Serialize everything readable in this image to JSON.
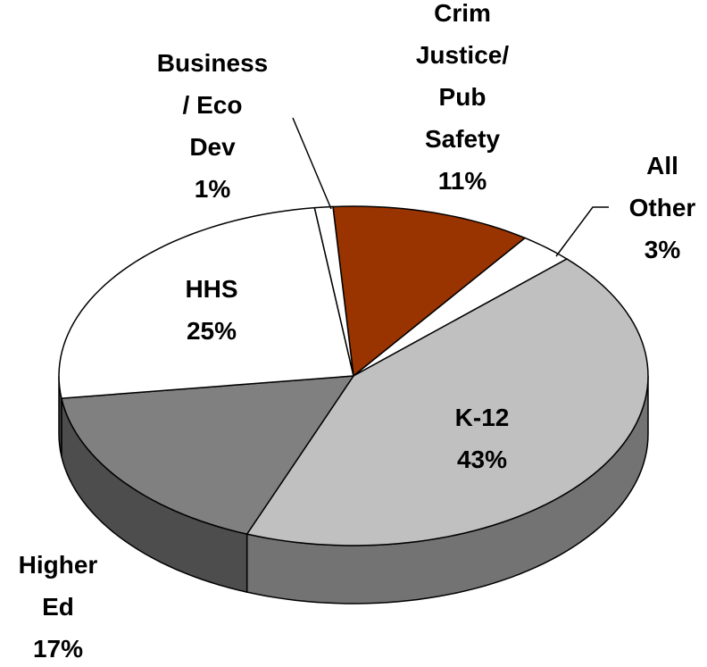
{
  "chart_data": {
    "type": "pie",
    "categories": [
      "Crim\nJustice/\nPub\nSafety",
      "All\nOther",
      "K-12",
      "Higher\nEd",
      "HHS",
      "Business\n/ Eco\nDev"
    ],
    "values": [
      11,
      3,
      43,
      17,
      25,
      1
    ],
    "value_labels": [
      "11%",
      "3%",
      "43%",
      "17%",
      "25%",
      "1%"
    ],
    "colors": [
      "#993300",
      "#ffffff",
      "#c0c0c0",
      "#808080",
      "#ffffff",
      "#ffffff"
    ]
  }
}
